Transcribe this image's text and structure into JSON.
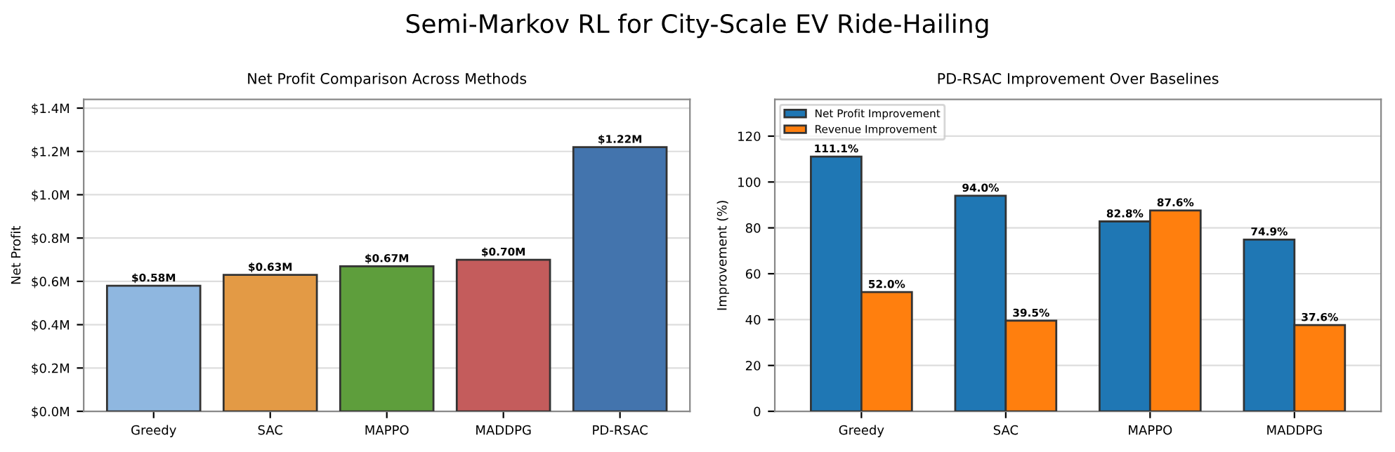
{
  "chart_data": [
    {
      "type": "bar",
      "title": "Net Profit Comparison Across Methods",
      "ylabel": "Net Profit",
      "annotations": [
        "Semi-Markov RL for City-Scale EV Ride-Hailing"
      ],
      "categories": [
        "Greedy",
        "SAC",
        "MAPPO",
        "MADDPG",
        "PD-RSAC"
      ],
      "values": [
        0.58,
        0.63,
        0.67,
        0.7,
        1.22
      ],
      "colors": [
        "#8fb7e0",
        "#e39a45",
        "#5e9e3c",
        "#c45c5c",
        "#4374ad"
      ],
      "value_labels": [
        "$0.58M",
        "$0.63M",
        "$0.67M",
        "$0.70M",
        "$1.22M"
      ],
      "ylim": [
        0,
        1.44
      ],
      "yticks": [
        {
          "value": 0,
          "label": "$0.0M"
        },
        {
          "value": 0.2,
          "label": "$0.2M"
        },
        {
          "value": 0.4,
          "label": "$0.4M"
        },
        {
          "value": 0.6,
          "label": "$0.6M"
        },
        {
          "value": 0.8,
          "label": "$0.8M"
        },
        {
          "value": 1.0,
          "label": "$1.0M"
        },
        {
          "value": 1.2,
          "label": "$1.2M"
        },
        {
          "value": 1.4,
          "label": "$1.4M"
        }
      ],
      "grid": "y",
      "legend": false
    },
    {
      "type": "bar",
      "title": "PD-RSAC Improvement Over Baselines",
      "ylabel": "Improvement (%)",
      "categories": [
        "Greedy",
        "SAC",
        "MAPPO",
        "MADDPG"
      ],
      "series": [
        {
          "name": "Net Profit Improvement",
          "color": "#1f77b4",
          "values": [
            111.1,
            94.0,
            82.8,
            74.9
          ],
          "value_labels": [
            "111.1%",
            "94.0%",
            "82.8%",
            "74.9%"
          ]
        },
        {
          "name": "Revenue Improvement",
          "color": "#ff7f0e",
          "values": [
            52.0,
            39.5,
            87.6,
            37.6
          ],
          "value_labels": [
            "52.0%",
            "39.5%",
            "87.6%",
            "37.6%"
          ]
        }
      ],
      "ylim": [
        0,
        136
      ],
      "yticks": [
        0,
        20,
        40,
        60,
        80,
        100,
        120
      ],
      "grid": "y",
      "legend": "top left"
    }
  ]
}
